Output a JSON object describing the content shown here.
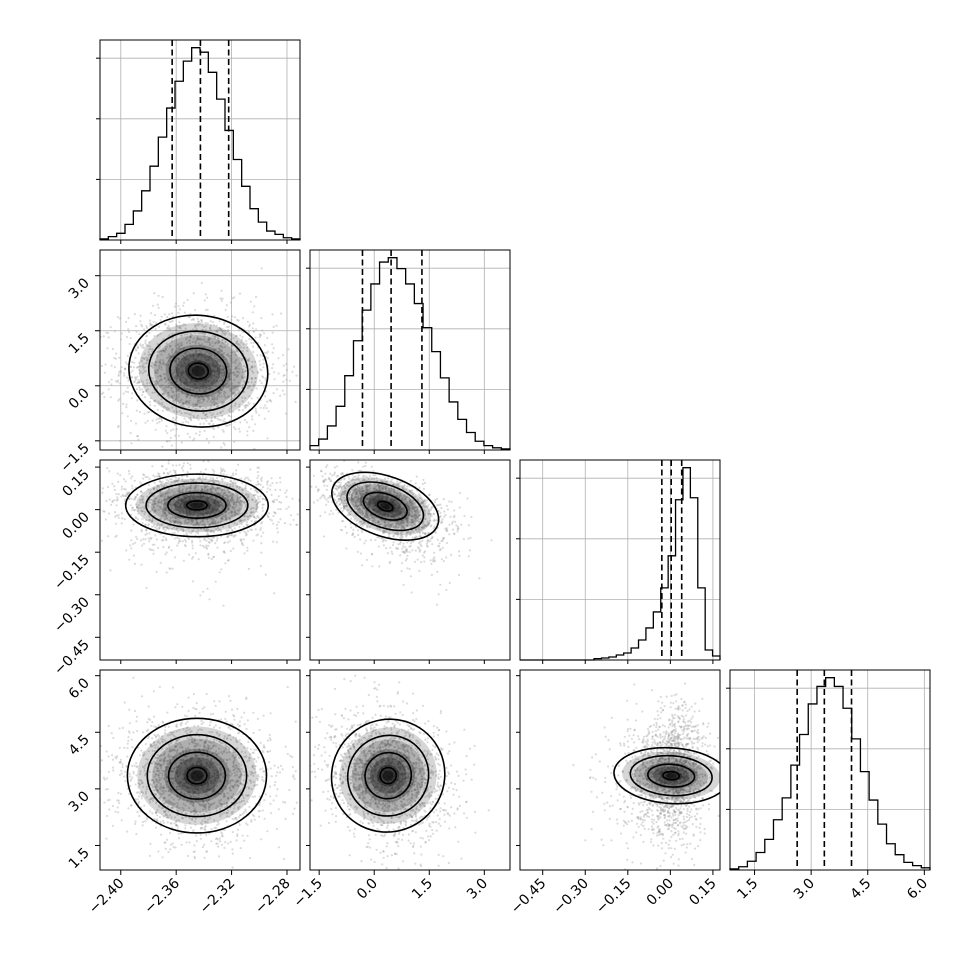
{
  "chart_data": {
    "type": "corner",
    "parameters": [
      {
        "range": [
          -2.415,
          -2.2706
        ],
        "ticks": [
          "−2.40",
          "−2.36",
          "−2.32",
          "−2.28"
        ],
        "tick_values": [
          -2.4,
          -2.36,
          -2.32,
          -2.28
        ],
        "hist_grid": true,
        "hist": [
          0.5,
          1.5,
          3,
          7,
          13,
          22,
          33,
          46,
          59,
          71,
          80,
          86,
          84,
          75,
          63,
          49,
          36,
          24,
          14,
          8,
          4,
          2.5,
          1,
          0.5
        ],
        "quantiles": [
          -2.3629,
          -2.3425,
          -2.3221
        ]
      },
      {
        "range": [
          -1.75,
          3.7
        ],
        "ticks": [
          "−1.5",
          "0.0",
          "1.5",
          "3.0"
        ],
        "tick_values": [
          -1.5,
          0.0,
          1.5,
          3.0
        ],
        "hist_grid": true,
        "hist": [
          2,
          5,
          11,
          20,
          34,
          50,
          64,
          76,
          86,
          88,
          83,
          76,
          67,
          56,
          45,
          33,
          22,
          14,
          8,
          4,
          2,
          1,
          0.5
        ],
        "quantiles": [
          -0.32,
          0.46,
          1.3
        ]
      },
      {
        "range": [
          -0.53,
          0.175
        ],
        "ticks": [
          "−0.45",
          "−0.30",
          "−0.15",
          "0.00",
          "0.15"
        ],
        "tick_values": [
          -0.45,
          -0.3,
          -0.15,
          0.0,
          0.15
        ],
        "hist_grid": true,
        "hist": [
          0,
          0,
          0,
          0,
          0,
          0,
          0,
          0,
          0,
          0,
          0.7,
          1,
          1.5,
          2.5,
          3.5,
          6,
          10,
          16,
          24,
          36,
          52,
          80,
          96,
          81,
          36,
          5,
          2
        ],
        "quantiles": [
          -0.03,
          0.003,
          0.04
        ]
      },
      {
        "range": [
          0.85,
          6.15
        ],
        "ticks": [
          "1.5",
          "3.0",
          "4.5",
          "6.0"
        ],
        "tick_values": [
          1.5,
          3.0,
          4.5,
          6.0
        ],
        "hist_grid": true,
        "hist": [
          0.5,
          1.5,
          4,
          8,
          14,
          23,
          33,
          48,
          62,
          76,
          84,
          88,
          84,
          74,
          60,
          45,
          32,
          21,
          12,
          7,
          3.5,
          2,
          1
        ],
        "quantiles": [
          2.63,
          3.35,
          4.07
        ]
      }
    ],
    "pairs": [
      {
        "x": 0,
        "y": 1,
        "center": [
          -2.344,
          0.4
        ],
        "sd": [
          0.0205,
          0.62
        ],
        "rho": -0.05,
        "grid": true,
        "points": 1800
      },
      {
        "x": 0,
        "y": 2,
        "center": [
          -2.345,
          0.015
        ],
        "sd": [
          0.021,
          0.045
        ],
        "rho": 0.0,
        "grid": false,
        "points": 1800
      },
      {
        "x": 1,
        "y": 2,
        "center": [
          0.3,
          0.012
        ],
        "sd": [
          0.62,
          0.043
        ],
        "rho": -0.55,
        "grid": false,
        "points": 1800
      },
      {
        "x": 0,
        "y": 3,
        "center": [
          -2.345,
          3.35
        ],
        "sd": [
          0.0205,
          0.62
        ],
        "rho": 0.0,
        "grid": false,
        "points": 1800
      },
      {
        "x": 1,
        "y": 3,
        "center": [
          0.38,
          3.35
        ],
        "sd": [
          0.62,
          0.62
        ],
        "rho": -0.2,
        "grid": false,
        "points": 1800
      },
      {
        "x": 2,
        "y": 3,
        "center": [
          0.003,
          3.35
        ],
        "sd": [
          0.04,
          0.62
        ],
        "rho": 0.1,
        "grid": false,
        "points": 1800
      }
    ]
  }
}
